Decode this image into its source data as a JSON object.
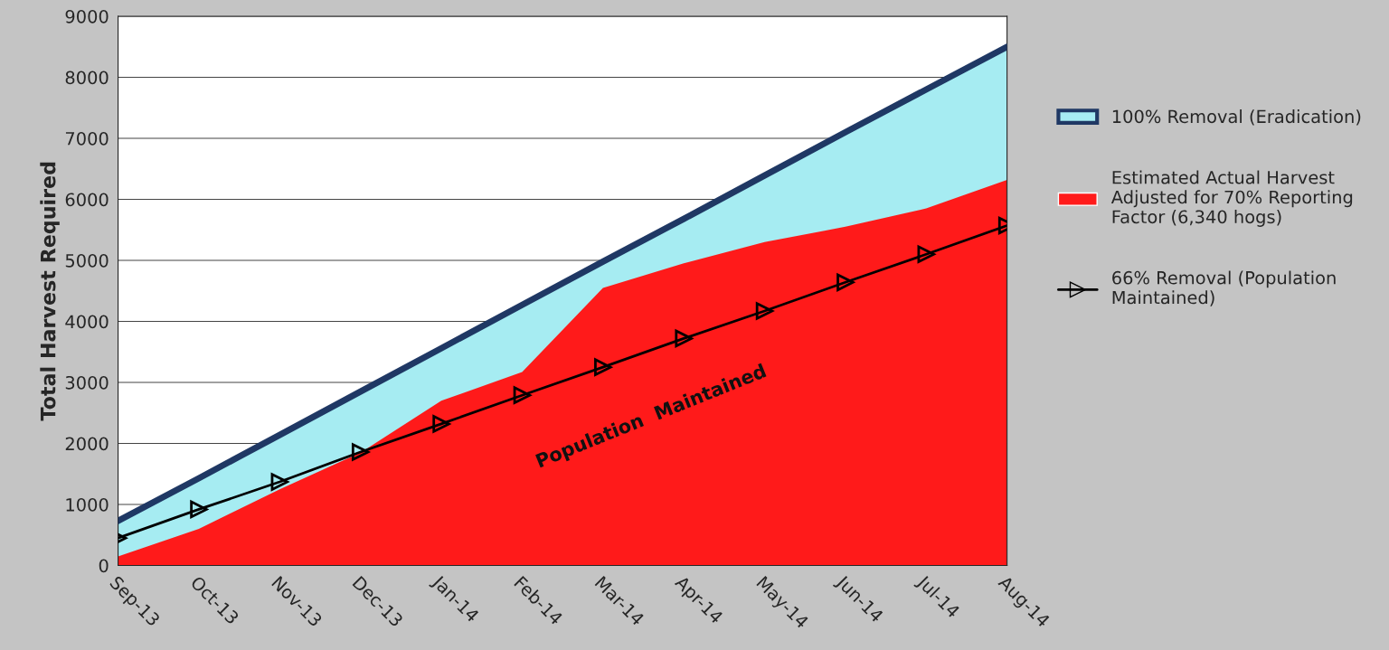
{
  "chart_data": {
    "type": "area",
    "ylabel": "Total Harvest Required",
    "categories": [
      "Sep-13",
      "Oct-13",
      "Nov-13",
      "Dec-13",
      "Jan-14",
      "Feb-14",
      "Mar-14",
      "Apr-14",
      "May-14",
      "Jun-14",
      "Jul-14",
      "Aug-14"
    ],
    "series": [
      {
        "name": "100% Removal (Eradication)",
        "color": "#a6ecf2",
        "values": [
          730,
          1430,
          2140,
          2850,
          3560,
          4270,
          4980,
          5680,
          6390,
          7100,
          7800,
          8500
        ]
      },
      {
        "name": "Estimated Actual Harvest Adjusted for 70% Reporting Factor (6,340 hogs)",
        "color": "#ff1a1a",
        "values": [
          150,
          600,
          1250,
          1850,
          2700,
          3170,
          4550,
          4950,
          5300,
          5550,
          5850,
          6320
        ]
      },
      {
        "name": "66% Removal (Population Maintained)",
        "type": "line",
        "color": "#000000",
        "marker": "triangle",
        "values": [
          450,
          920,
          1370,
          1860,
          2320,
          2790,
          3250,
          3720,
          4170,
          4640,
          5100,
          5570
        ]
      }
    ],
    "ylim": [
      0,
      9000
    ],
    "yticks": [
      0,
      1000,
      2000,
      3000,
      4000,
      5000,
      6000,
      7000,
      8000,
      9000
    ],
    "grid": "y",
    "legend": "right",
    "annotations": [
      "Population  Maintained"
    ]
  }
}
